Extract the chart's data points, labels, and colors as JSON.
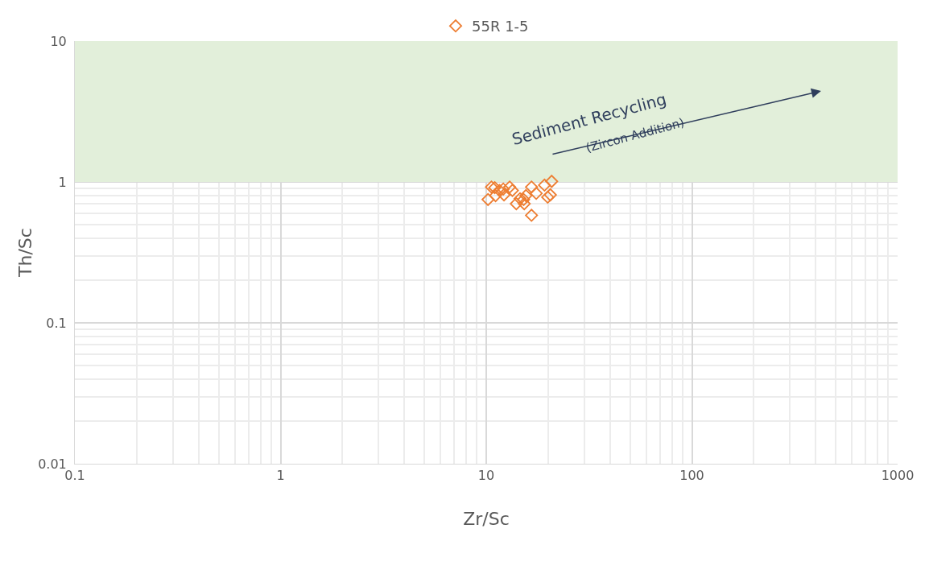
{
  "chart_data": {
    "type": "scatter",
    "xlabel": "Zr/Sc",
    "ylabel": "Th/Sc",
    "log": "xy",
    "xlim": [
      0.1,
      1000
    ],
    "xticks": [
      0.1,
      1,
      10,
      100,
      1000
    ],
    "ylim": [
      0.01,
      10
    ],
    "yticks": [
      0.01,
      0.1,
      1,
      10
    ],
    "grid": true,
    "legend": "top",
    "marker": "diamond",
    "series": [
      {
        "name": "55R 1-5",
        "color": "#ed7d31",
        "x": [
          10.6,
          11.0,
          10.2,
          11.6,
          12.1,
          13.0,
          13.4,
          11.1,
          12.2,
          14.0,
          14.6,
          15.6,
          15.3,
          16.6,
          17.5,
          16.6,
          19.2,
          20.8,
          19.9,
          20.5,
          15.2
        ],
        "values": [
          0.92,
          0.91,
          0.75,
          0.87,
          0.89,
          0.92,
          0.87,
          0.8,
          0.81,
          0.7,
          0.76,
          0.8,
          0.7,
          0.92,
          0.83,
          0.58,
          0.95,
          1.01,
          0.78,
          0.81,
          0.75
        ]
      }
    ],
    "bands": [
      {
        "axis": "y",
        "from": 1,
        "to": 10,
        "color": "#e2efda"
      }
    ],
    "annotations": [
      "Sediment Recycling",
      "(Zircon Addition)"
    ]
  }
}
